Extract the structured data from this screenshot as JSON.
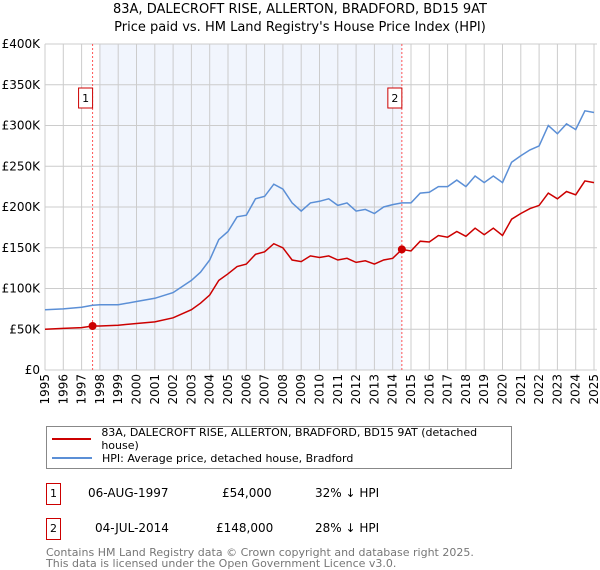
{
  "title": "83A, DALECROFT RISE, ALLERTON, BRADFORD, BD15 9AT",
  "subtitle": "Price paid vs. HM Land Registry's House Price Index (HPI)",
  "chart_data": {
    "type": "line",
    "title": "Price paid vs. HM Land Registry's House Price Index (HPI)",
    "xlim": [
      1995,
      2025
    ],
    "ylim": [
      0,
      400000
    ],
    "x_ticks": [
      "1995",
      "1996",
      "1997",
      "1998",
      "1999",
      "2000",
      "2001",
      "2002",
      "2003",
      "2004",
      "2005",
      "2006",
      "2007",
      "2008",
      "2009",
      "2010",
      "2011",
      "2012",
      "2013",
      "2014",
      "2015",
      "2016",
      "2017",
      "2018",
      "2019",
      "2020",
      "2021",
      "2022",
      "2023",
      "2024",
      "2025"
    ],
    "y_ticks": [
      {
        "v": 0,
        "label": "£0"
      },
      {
        "v": 50000,
        "label": "£50K"
      },
      {
        "v": 100000,
        "label": "£100K"
      },
      {
        "v": 150000,
        "label": "£150K"
      },
      {
        "v": 200000,
        "label": "£200K"
      },
      {
        "v": 250000,
        "label": "£250K"
      },
      {
        "v": 300000,
        "label": "£300K"
      },
      {
        "v": 350000,
        "label": "£350K"
      },
      {
        "v": 400000,
        "label": "£400K"
      }
    ],
    "grid": true,
    "shaded_range": [
      1998.0,
      2014.5
    ],
    "x": [
      1995,
      1996,
      1997,
      1997.6,
      1998,
      1999,
      2000,
      2001,
      2002,
      2003,
      2003.5,
      2004,
      2004.5,
      2005,
      2005.5,
      2006,
      2006.5,
      2007,
      2007.5,
      2008,
      2008.5,
      2009,
      2009.5,
      2010,
      2010.5,
      2011,
      2011.5,
      2012,
      2012.5,
      2013,
      2013.5,
      2014,
      2014.5,
      2015,
      2015.5,
      2016,
      2016.5,
      2017,
      2017.5,
      2018,
      2018.5,
      2019,
      2019.5,
      2020,
      2020.5,
      2021,
      2021.5,
      2022,
      2022.5,
      2023,
      2023.5,
      2024,
      2024.5,
      2025
    ],
    "series": [
      {
        "name": "83A, DALECROFT RISE, ALLERTON, BRADFORD, BD15 9AT (detached house)",
        "color": "#cc0000",
        "values": [
          50000,
          51000,
          52000,
          54000,
          54000,
          55000,
          57000,
          59000,
          64000,
          74000,
          82000,
          92000,
          110000,
          118000,
          127000,
          130000,
          142000,
          145000,
          155000,
          150000,
          135000,
          133000,
          140000,
          138000,
          140000,
          135000,
          137000,
          132000,
          134000,
          130000,
          135000,
          137000,
          148000,
          146000,
          158000,
          157000,
          165000,
          163000,
          170000,
          164000,
          174000,
          166000,
          174000,
          165000,
          185000,
          192000,
          198000,
          202000,
          217000,
          210000,
          219000,
          215000,
          232000,
          230000
        ]
      },
      {
        "name": "HPI: Average price, detached house, Bradford",
        "color": "#5b8fd6",
        "values": [
          74000,
          75000,
          77000,
          79500,
          80000,
          80000,
          84000,
          88000,
          95000,
          110000,
          120000,
          135000,
          160000,
          170000,
          188000,
          190000,
          210000,
          213000,
          228000,
          222000,
          205000,
          195000,
          205000,
          207000,
          210000,
          202000,
          205000,
          195000,
          197000,
          192000,
          200000,
          203000,
          205000,
          205000,
          217000,
          218000,
          225000,
          225000,
          233000,
          225000,
          238000,
          230000,
          238000,
          230000,
          255000,
          263000,
          270000,
          275000,
          300000,
          290000,
          302000,
          295000,
          318000,
          316000
        ]
      }
    ],
    "sales": [
      {
        "label": "1",
        "x": 1997.6,
        "price": 54000
      },
      {
        "label": "2",
        "x": 2014.5,
        "price": 148000
      }
    ]
  },
  "legend": {
    "property": "83A, DALECROFT RISE, ALLERTON, BRADFORD, BD15 9AT (detached house)",
    "hpi": "HPI: Average price, detached house, Bradford"
  },
  "sales_table": [
    {
      "num": "1",
      "date": "06-AUG-1997",
      "price": "£54,000",
      "hpi": "32% ↓ HPI"
    },
    {
      "num": "2",
      "date": "04-JUL-2014",
      "price": "£148,000",
      "hpi": "28% ↓ HPI"
    }
  ],
  "footer": {
    "line1": "Contains HM Land Registry data © Crown copyright and database right 2025.",
    "line2": "This data is licensed under the Open Government Licence v3.0."
  }
}
